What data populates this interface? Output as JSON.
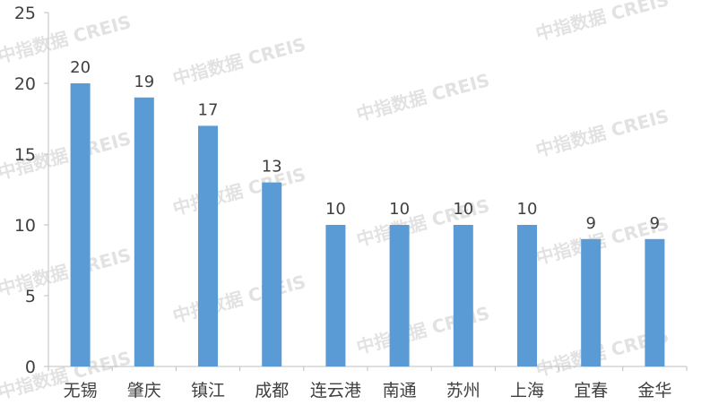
{
  "chart_data": {
    "type": "bar",
    "title": "",
    "xlabel": "",
    "ylabel": "",
    "ylim": [
      0,
      25
    ],
    "yticks": [
      0,
      5,
      10,
      15,
      20,
      25
    ],
    "categories": [
      "无锡",
      "肇庆",
      "镇江",
      "成都",
      "连云港",
      "南通",
      "苏州",
      "上海",
      "宜春",
      "金华"
    ],
    "values": [
      20,
      19,
      17,
      13,
      10,
      10,
      10,
      10,
      9,
      9
    ],
    "grid": false,
    "legend": "none",
    "bar_color": "#5b9bd5"
  },
  "watermark": {
    "text": "中指数据 CREIS",
    "color": "#d9d9d9"
  },
  "colors": {
    "axis": "#bfbfbf",
    "tick_text": "#404040",
    "label_text": "#404040"
  }
}
